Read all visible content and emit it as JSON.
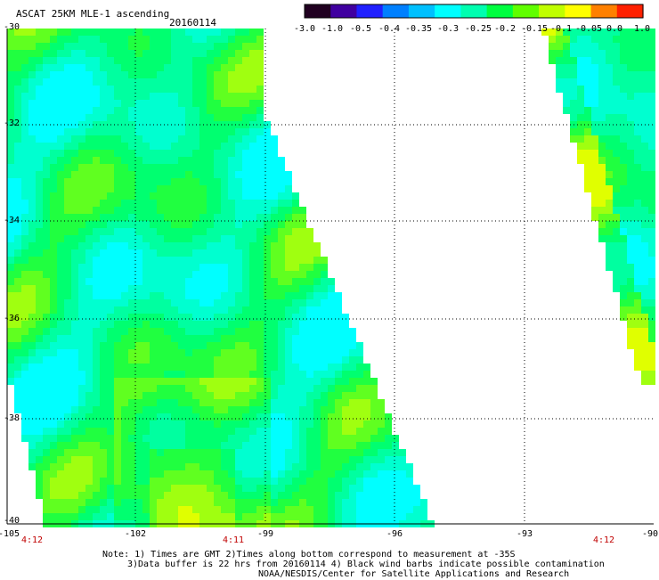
{
  "header": {
    "title": "ASCAT 25KM MLE-1 ascending",
    "date": "20160114"
  },
  "colorbar": {
    "labels": [
      "-3.0",
      "-1.0",
      "-0.5",
      "-0.4",
      "-0.35",
      "-0.3",
      "-0.25",
      "-0.2",
      "-0.15",
      "-0.1",
      "-0.05",
      "0.0",
      "1.0"
    ],
    "colors": [
      "#200020",
      "#4000a0",
      "#2020ff",
      "#0080ff",
      "#00c0ff",
      "#00ffff",
      "#00ffb0",
      "#00ff40",
      "#60ff00",
      "#c0ff00",
      "#ffff00",
      "#ff8000",
      "#ff2000"
    ]
  },
  "axes": {
    "lat_labels": [
      "-30",
      "-32",
      "-34",
      "-36",
      "-38",
      "-40"
    ],
    "lon_labels": [
      "-105",
      "-102",
      "-99",
      "-96",
      "-93",
      "-90"
    ]
  },
  "times": {
    "t1": "4:12",
    "t2": "4:11",
    "t3": "4:12"
  },
  "notes": {
    "line1": "Note: 1) Times are GMT 2)Times along bottom correspond to measurement at -35S",
    "line2": "3)Data buffer is 22 hrs from 20160114 4) Black wind barbs indicate possible contamination",
    "line3": "NOAA/NESDIS/Center for Satellite Applications and Research"
  }
}
